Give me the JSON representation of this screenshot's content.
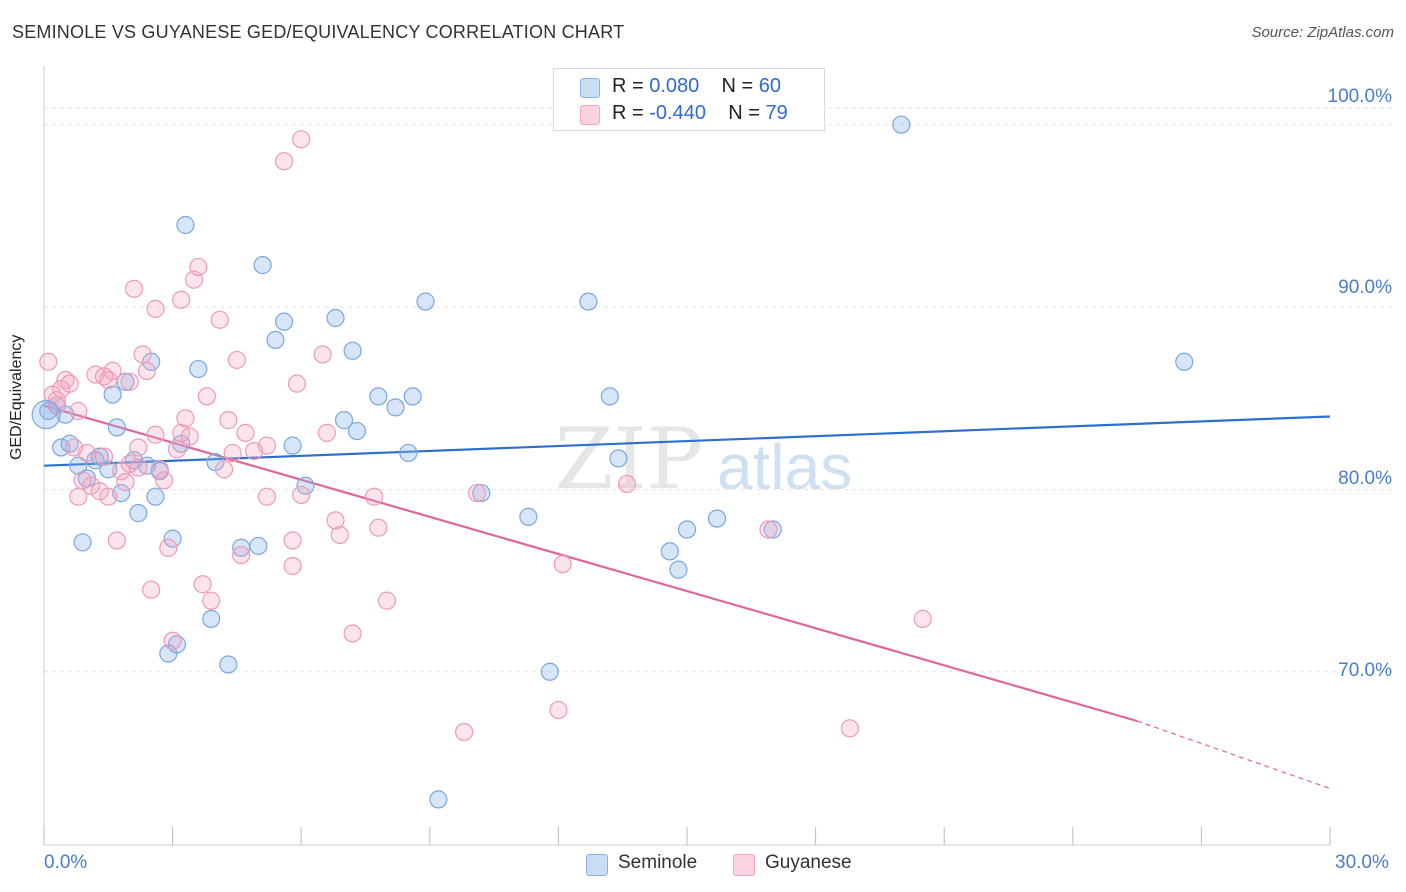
{
  "title": "SEMINOLE VS GUYANESE GED/EQUIVALENCY CORRELATION CHART",
  "source": "Source: ZipAtlas.com",
  "watermark": {
    "zip": "ZIP",
    "atlas": "atlas"
  },
  "legend": {
    "seminole": {
      "r_label": "R = ",
      "r_value": "0.080",
      "n_label": "N = ",
      "n_value": "60"
    },
    "guyanese": {
      "r_label": "R = ",
      "r_value": "-0.440",
      "n_label": "N = ",
      "n_value": "79"
    }
  },
  "bottom_legend": {
    "seminole": "Seminole",
    "guyanese": "Guyanese"
  },
  "colors": {
    "seminole": "#8ab4e8",
    "seminole_line": "#2f6fcc",
    "guyanese": "#f3a6bf",
    "guyanese_line": "#e0659a"
  },
  "chart_data": {
    "type": "scatter",
    "title": "SEMINOLE VS GUYANESE GED/EQUIVALENCY CORRELATION CHART",
    "xlabel": "",
    "ylabel": "GED/Equivalency",
    "xlim": [
      0,
      30
    ],
    "ylim": [
      60.5,
      103
    ],
    "x_tick_labels": [
      "0.0%",
      "30.0%"
    ],
    "y_ticks": [
      70,
      80,
      90,
      100
    ],
    "y_tick_labels": [
      "70.0%",
      "80.0%",
      "90.0%",
      "100.0%"
    ],
    "grid": true,
    "legend_placement": "top-center",
    "series": [
      {
        "name": "Seminole",
        "color": "#8ab4e8",
        "trend": {
          "x": [
            0,
            30
          ],
          "y": [
            81.3,
            84.0
          ]
        },
        "points": [
          [
            0.1,
            84.3
          ],
          [
            0.3,
            84.6
          ],
          [
            0.4,
            82.3
          ],
          [
            0.5,
            84.1
          ],
          [
            0.6,
            82.5
          ],
          [
            0.8,
            81.3
          ],
          [
            0.9,
            77.1
          ],
          [
            1.0,
            80.6
          ],
          [
            1.2,
            81.6
          ],
          [
            1.3,
            81.8
          ],
          [
            1.5,
            81.1
          ],
          [
            1.6,
            85.2
          ],
          [
            1.7,
            83.4
          ],
          [
            1.8,
            79.8
          ],
          [
            1.9,
            85.9
          ],
          [
            2.1,
            81.6
          ],
          [
            2.2,
            78.7
          ],
          [
            2.4,
            81.3
          ],
          [
            2.5,
            87.0
          ],
          [
            2.6,
            79.6
          ],
          [
            2.7,
            81.0
          ],
          [
            2.9,
            71.0
          ],
          [
            3.0,
            77.3
          ],
          [
            3.1,
            71.5
          ],
          [
            3.2,
            82.5
          ],
          [
            3.3,
            94.5
          ],
          [
            3.6,
            86.6
          ],
          [
            3.9,
            72.9
          ],
          [
            4.0,
            81.5
          ],
          [
            4.3,
            70.4
          ],
          [
            4.6,
            76.8
          ],
          [
            5.0,
            76.9
          ],
          [
            5.1,
            92.3
          ],
          [
            5.4,
            88.2
          ],
          [
            5.6,
            89.2
          ],
          [
            5.8,
            82.4
          ],
          [
            6.1,
            80.2
          ],
          [
            6.8,
            89.4
          ],
          [
            7.0,
            83.8
          ],
          [
            7.2,
            87.6
          ],
          [
            7.3,
            83.2
          ],
          [
            7.8,
            85.1
          ],
          [
            8.2,
            84.5
          ],
          [
            8.5,
            82.0
          ],
          [
            8.6,
            85.1
          ],
          [
            8.9,
            90.3
          ],
          [
            9.2,
            63.0
          ],
          [
            10.2,
            79.8
          ],
          [
            11.3,
            78.5
          ],
          [
            11.8,
            70.0
          ],
          [
            12.7,
            90.3
          ],
          [
            13.2,
            85.1
          ],
          [
            13.4,
            81.7
          ],
          [
            14.6,
            76.6
          ],
          [
            14.8,
            75.6
          ],
          [
            15.0,
            77.8
          ],
          [
            15.7,
            78.4
          ],
          [
            17.0,
            77.8
          ],
          [
            20.0,
            100.0
          ],
          [
            26.6,
            87.0
          ]
        ]
      },
      {
        "name": "Guyanese",
        "color": "#f3a6bf",
        "trend": {
          "x": [
            0,
            25.5
          ],
          "y": [
            84.6,
            67.3
          ]
        },
        "trend_dashed": {
          "x": [
            25.5,
            30
          ],
          "y": [
            67.3,
            63.6
          ]
        },
        "points": [
          [
            0.1,
            87.0
          ],
          [
            0.2,
            85.2
          ],
          [
            0.3,
            84.9
          ],
          [
            0.4,
            85.5
          ],
          [
            0.5,
            86.0
          ],
          [
            0.6,
            85.8
          ],
          [
            0.7,
            82.3
          ],
          [
            0.8,
            84.3
          ],
          [
            0.8,
            79.6
          ],
          [
            1.0,
            82.0
          ],
          [
            1.1,
            80.2
          ],
          [
            1.2,
            86.3
          ],
          [
            1.3,
            79.9
          ],
          [
            1.4,
            81.8
          ],
          [
            1.5,
            79.6
          ],
          [
            1.5,
            86.0
          ],
          [
            1.6,
            86.5
          ],
          [
            1.7,
            77.2
          ],
          [
            1.8,
            81.0
          ],
          [
            1.9,
            80.4
          ],
          [
            2.0,
            81.4
          ],
          [
            2.0,
            85.9
          ],
          [
            2.1,
            91.0
          ],
          [
            2.2,
            81.2
          ],
          [
            2.3,
            87.4
          ],
          [
            2.4,
            86.5
          ],
          [
            2.5,
            74.5
          ],
          [
            2.6,
            83.0
          ],
          [
            2.6,
            89.9
          ],
          [
            2.7,
            81.1
          ],
          [
            2.8,
            80.5
          ],
          [
            2.9,
            76.8
          ],
          [
            3.0,
            71.7
          ],
          [
            3.1,
            82.2
          ],
          [
            3.2,
            90.4
          ],
          [
            3.2,
            83.1
          ],
          [
            3.3,
            83.9
          ],
          [
            3.4,
            82.9
          ],
          [
            3.5,
            91.5
          ],
          [
            3.6,
            92.2
          ],
          [
            3.7,
            74.8
          ],
          [
            3.8,
            85.1
          ],
          [
            3.9,
            73.9
          ],
          [
            4.1,
            89.3
          ],
          [
            4.2,
            81.1
          ],
          [
            4.3,
            83.8
          ],
          [
            4.4,
            82.0
          ],
          [
            4.5,
            87.1
          ],
          [
            4.6,
            76.4
          ],
          [
            4.7,
            83.1
          ],
          [
            4.9,
            82.1
          ],
          [
            5.2,
            82.4
          ],
          [
            5.2,
            79.6
          ],
          [
            5.6,
            98.0
          ],
          [
            5.8,
            77.2
          ],
          [
            5.8,
            75.8
          ],
          [
            5.9,
            85.8
          ],
          [
            6.0,
            99.2
          ],
          [
            6.0,
            79.7
          ],
          [
            6.5,
            87.4
          ],
          [
            6.6,
            83.1
          ],
          [
            6.8,
            78.3
          ],
          [
            6.9,
            77.5
          ],
          [
            7.2,
            72.1
          ],
          [
            7.7,
            79.6
          ],
          [
            7.8,
            77.9
          ],
          [
            8.0,
            73.9
          ],
          [
            9.8,
            66.7
          ],
          [
            10.1,
            79.8
          ],
          [
            12.0,
            67.9
          ],
          [
            12.1,
            75.9
          ],
          [
            13.6,
            80.3
          ],
          [
            16.9,
            77.8
          ],
          [
            18.8,
            66.9
          ],
          [
            20.5,
            72.9
          ],
          [
            0.3,
            84.6
          ],
          [
            1.4,
            86.2
          ],
          [
            0.9,
            80.5
          ],
          [
            2.2,
            82.3
          ]
        ]
      }
    ]
  }
}
